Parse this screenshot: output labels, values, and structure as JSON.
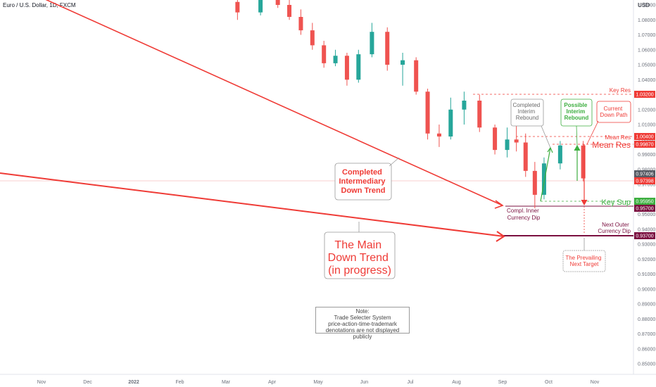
{
  "header": {
    "symbol_title": "Euro / U.S. Dollar, 1D, FXCM",
    "currency": "USD"
  },
  "colors": {
    "red": "#ef3b36",
    "green": "#3cae3f",
    "down_candle": "#ef5350",
    "up_candle": "#26a69a",
    "purple": "#7b1040",
    "dark_red": "#e53935"
  },
  "chart_data": {
    "type": "candlestick",
    "title": "Euro / U.S. Dollar, 1D, FXCM",
    "ylim": [
      0.845,
      1.098
    ],
    "y_ticks": [
      "1.09000",
      "1.08000",
      "1.07000",
      "1.06000",
      "1.05000",
      "1.04000",
      "1.03000",
      "1.02000",
      "1.01000",
      "1.00000",
      "0.99000",
      "0.98000",
      "0.97000",
      "0.96000",
      "0.95000",
      "0.94000",
      "0.93000",
      "0.92000",
      "0.91000",
      "0.90000",
      "0.89000",
      "0.88000",
      "0.87000",
      "0.86000",
      "0.85000"
    ],
    "x_ticks": [
      "Nov",
      "Dec",
      "2022",
      "Feb",
      "Mar",
      "Apr",
      "May",
      "Jun",
      "Jul",
      "Aug",
      "Sep",
      "Oct",
      "Nov"
    ],
    "price_tags": [
      {
        "text": "1.03200",
        "color": "#ef3b36"
      },
      {
        "text": "1.00400",
        "color": "#ef3b36"
      },
      {
        "text": "0.99870",
        "color": "#ef3b36"
      },
      {
        "text": "0.97406",
        "color": "#555a63"
      },
      {
        "text": "0.97398",
        "color": "#ef3b36"
      },
      {
        "text": "0.95950",
        "color": "#3cae3f"
      },
      {
        "text": "0.95700",
        "color": "#7b1040"
      },
      {
        "text": "0.93700",
        "color": "#7b1040"
      }
    ],
    "candles": [
      {
        "m": "Mar",
        "o": 1.092,
        "h": 1.098,
        "l": 1.08,
        "c": 1.085
      },
      {
        "m": "Mar",
        "o": 1.085,
        "h": 1.1,
        "l": 1.083,
        "c": 1.097
      },
      {
        "m": "Apr",
        "o": 1.096,
        "h": 1.1,
        "l": 1.088,
        "c": 1.09
      },
      {
        "m": "Apr",
        "o": 1.09,
        "h": 1.095,
        "l": 1.08,
        "c": 1.082
      },
      {
        "m": "Apr",
        "o": 1.082,
        "h": 1.087,
        "l": 1.07,
        "c": 1.073
      },
      {
        "m": "Apr",
        "o": 1.073,
        "h": 1.078,
        "l": 1.06,
        "c": 1.063
      },
      {
        "m": "May",
        "o": 1.063,
        "h": 1.066,
        "l": 1.048,
        "c": 1.051
      },
      {
        "m": "May",
        "o": 1.051,
        "h": 1.06,
        "l": 1.049,
        "c": 1.056
      },
      {
        "m": "May",
        "o": 1.056,
        "h": 1.058,
        "l": 1.036,
        "c": 1.04
      },
      {
        "m": "May",
        "o": 1.04,
        "h": 1.06,
        "l": 1.038,
        "c": 1.057
      },
      {
        "m": "Jun",
        "o": 1.057,
        "h": 1.078,
        "l": 1.055,
        "c": 1.072
      },
      {
        "m": "Jun",
        "o": 1.072,
        "h": 1.075,
        "l": 1.046,
        "c": 1.05
      },
      {
        "m": "Jun",
        "o": 1.05,
        "h": 1.058,
        "l": 1.036,
        "c": 1.053
      },
      {
        "m": "Jul",
        "o": 1.053,
        "h": 1.055,
        "l": 1.03,
        "c": 1.032
      },
      {
        "m": "Jul",
        "o": 1.032,
        "h": 1.034,
        "l": 1.0,
        "c": 1.004
      },
      {
        "m": "Jul",
        "o": 1.004,
        "h": 1.01,
        "l": 0.995,
        "c": 1.002
      },
      {
        "m": "Jul",
        "o": 1.002,
        "h": 1.028,
        "l": 1.0,
        "c": 1.02
      },
      {
        "m": "Aug",
        "o": 1.02,
        "h": 1.032,
        "l": 1.01,
        "c": 1.026
      },
      {
        "m": "Aug",
        "o": 1.026,
        "h": 1.03,
        "l": 1.005,
        "c": 1.008
      },
      {
        "m": "Aug",
        "o": 1.008,
        "h": 1.01,
        "l": 0.99,
        "c": 0.993
      },
      {
        "m": "Sep",
        "o": 0.993,
        "h": 1.008,
        "l": 0.988,
        "c": 1.0
      },
      {
        "m": "Sep",
        "o": 1.0,
        "h": 1.018,
        "l": 0.992,
        "c": 0.998
      },
      {
        "m": "Sep",
        "o": 0.998,
        "h": 1.004,
        "l": 0.975,
        "c": 0.979
      },
      {
        "m": "Sep",
        "o": 0.979,
        "h": 0.985,
        "l": 0.954,
        "c": 0.963
      },
      {
        "m": "Sep",
        "o": 0.963,
        "h": 0.988,
        "l": 0.96,
        "c": 0.984
      },
      {
        "m": "Oct",
        "o": 0.984,
        "h": 0.999,
        "l": 0.98,
        "c": 0.996
      },
      {
        "m": "Oct",
        "o": 0.996,
        "h": 0.999,
        "l": 0.972,
        "c": 0.974
      }
    ],
    "levels": [
      {
        "name": "Key Res",
        "value": 1.032
      },
      {
        "name": "Mean Res",
        "value": 1.004
      },
      {
        "name": "Mean Res",
        "value": 0.9987
      },
      {
        "name": "Key Sup",
        "value": 0.9595
      },
      {
        "name": "Compl. Inner Currency Dip",
        "value": 0.957
      },
      {
        "name": "Next Outer Currency Dip",
        "value": 0.937
      }
    ]
  },
  "annotations": {
    "key_res": "Key Res",
    "mean_res_small": "Mean Res",
    "mean_res_big": "Mean Res",
    "key_sup": "Key Sup",
    "completed_interim": [
      "Completed",
      "Interim",
      "Rebound"
    ],
    "possible_interim": [
      "Possible",
      "Interim",
      "Rebound"
    ],
    "current_down": [
      "Current",
      "Down Path"
    ],
    "completed_intermediary": [
      "Completed",
      "Intermediary",
      "Down Trend"
    ],
    "compl_inner": [
      "Compl. Inner",
      "Currency Dip"
    ],
    "main_trend": [
      "The Main",
      "Down Trend",
      "(in progress)"
    ],
    "next_outer": [
      "Next Outer",
      "Currency Dip"
    ],
    "prevailing": [
      "The Prevailing",
      "Next Target"
    ],
    "note": [
      "Note:",
      "Trade Selecter System",
      "price-action-time-trademark",
      "denotations are not displayed publicly"
    ]
  }
}
